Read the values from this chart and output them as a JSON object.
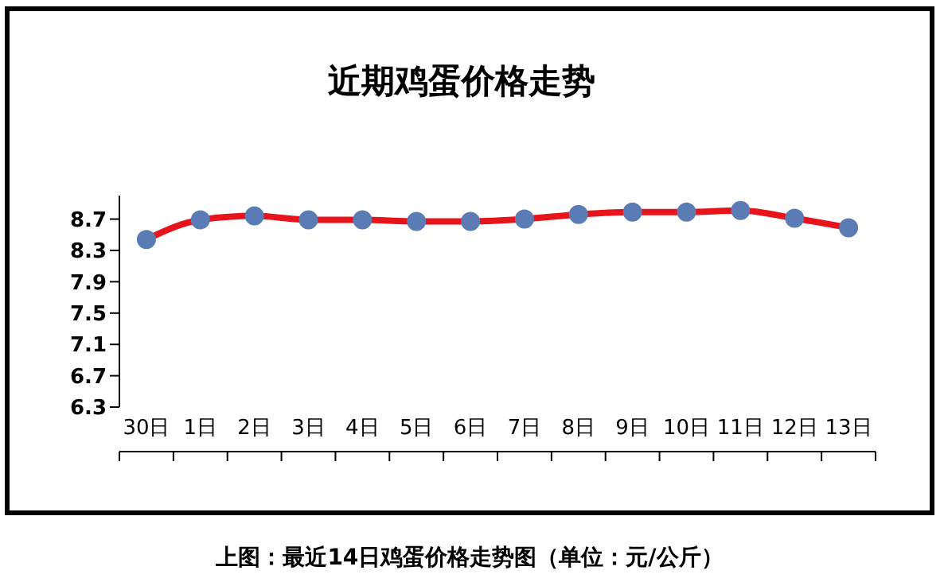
{
  "chart_data": {
    "type": "line",
    "title": "近期鸡蛋价格走势",
    "annotations": [
      "上图：最近14日鸡蛋价格走势图（单位：元/公斤）"
    ],
    "categories": [
      "30日",
      "1日",
      "2日",
      "3日",
      "4日",
      "5日",
      "6日",
      "7日",
      "8日",
      "9日",
      "10日",
      "11日",
      "12日",
      "13日"
    ],
    "series": [
      {
        "color": "#e8141c",
        "values": [
          8.44,
          8.69,
          8.74,
          8.69,
          8.69,
          8.67,
          8.67,
          8.7,
          8.76,
          8.79,
          8.79,
          8.81,
          8.71,
          8.59
        ]
      }
    ],
    "ylim": [
      6.3,
      9.0
    ],
    "yticks": [
      6.3,
      6.7,
      7.1,
      7.5,
      7.9,
      8.3,
      8.7
    ],
    "marker": "circle",
    "line_style": "solid"
  }
}
